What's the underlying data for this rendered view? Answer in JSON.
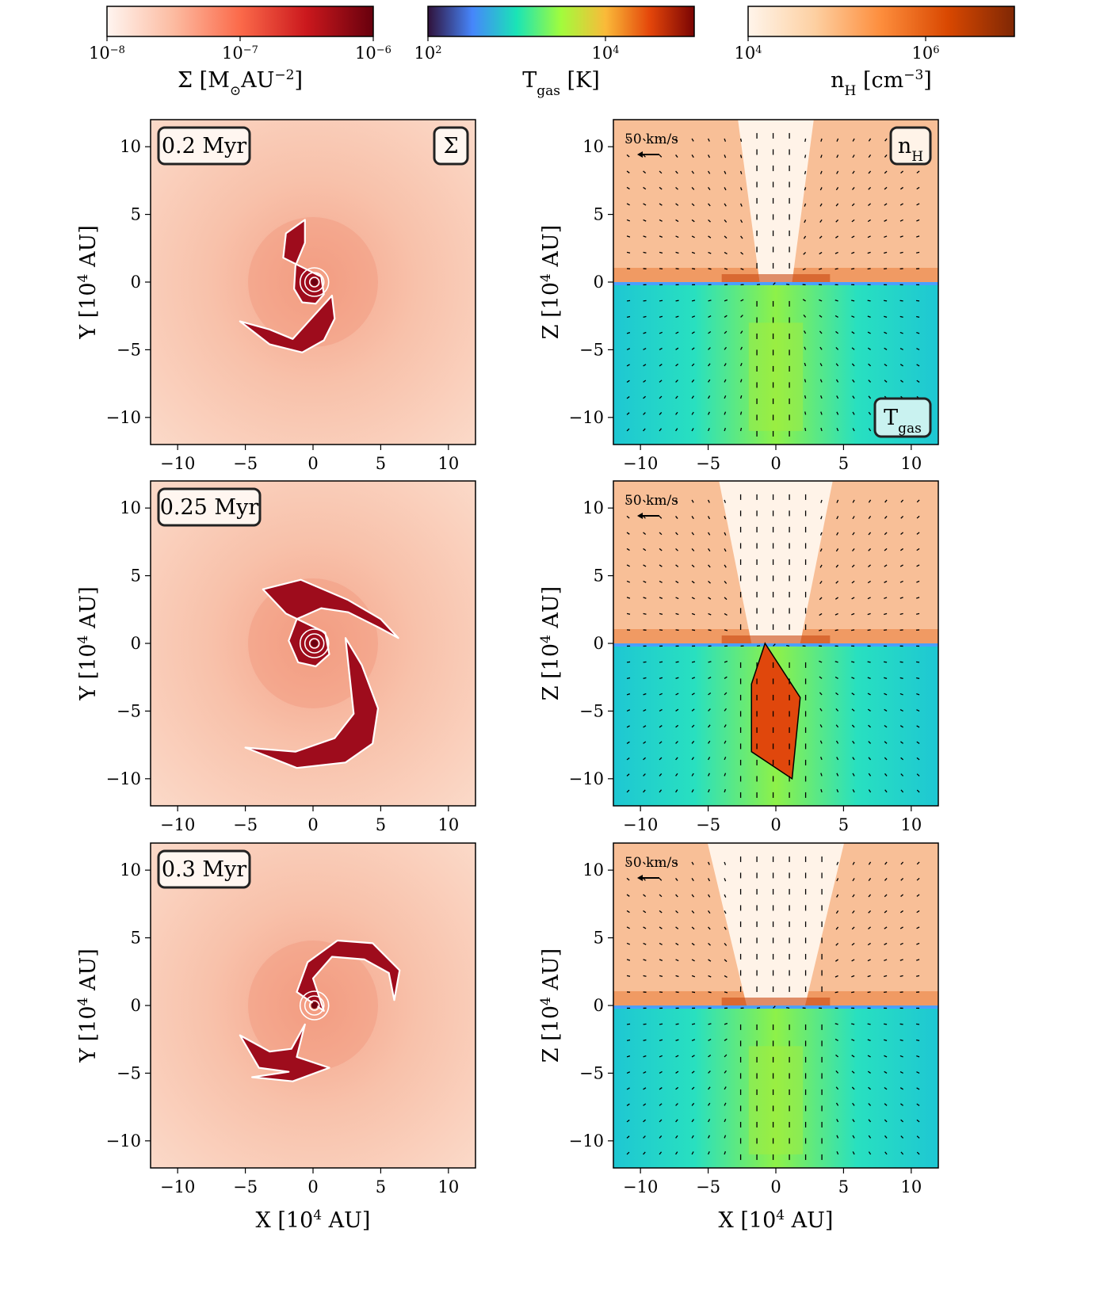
{
  "colorbars": [
    {
      "id": "sigma",
      "scale": "log",
      "ticks": [
        {
          "mant": "10",
          "exp": "−8"
        },
        {
          "mant": "10",
          "exp": "−7"
        },
        {
          "mant": "10",
          "exp": "−6"
        }
      ],
      "label": {
        "sym": "Σ",
        "unit_open": "[M",
        "sub": "⊙",
        "unit_mid": "AU",
        "sup": "−2",
        "unit_close": "]"
      },
      "colors": [
        "#fff5f0",
        "#fcbba1",
        "#fb6a4a",
        "#cb181d",
        "#67000d"
      ]
    },
    {
      "id": "tgas",
      "scale": "log",
      "ticks": [
        {
          "mant": "10",
          "exp": "2"
        },
        {
          "mant": "10",
          "exp": "4"
        }
      ],
      "label": {
        "sym": "T",
        "sub": "gas",
        "unit": "[K]"
      },
      "colors": [
        "#30123b",
        "#4686fb",
        "#1ae4b6",
        "#a2fc3c",
        "#faba39",
        "#e4460a",
        "#7a0403"
      ]
    },
    {
      "id": "nh",
      "scale": "log",
      "ticks": [
        {
          "mant": "10",
          "exp": "4"
        },
        {
          "mant": "10",
          "exp": "6"
        }
      ],
      "label": {
        "sym": "n",
        "sub": "H",
        "unit_open": "[cm",
        "sup": "−3",
        "unit_close": "]"
      },
      "colors": [
        "#fff5eb",
        "#fdd0a2",
        "#fd8d3c",
        "#d94801",
        "#7f2704"
      ]
    }
  ],
  "chart_data": [
    {
      "type": "heatmap",
      "quantity": "Σ",
      "time_label": "0.2 Myr",
      "badge": "Σ",
      "xlim": [
        -12,
        12
      ],
      "ylim": [
        -12,
        12
      ],
      "xticks": [
        "−10",
        "−5",
        "0",
        "5",
        "10"
      ],
      "yticks": [
        "10",
        "5",
        "0",
        "−5",
        "−10"
      ],
      "xlabel": "",
      "ylabel": {
        "base": "Y  [10",
        "sup": "4",
        "tail": " AU]"
      },
      "arms": [
        [
          [
            0.6,
            0.4
          ],
          [
            0.8,
            -0.9
          ],
          [
            0.2,
            -1.6
          ],
          [
            -0.8,
            -1.5
          ],
          [
            -1.4,
            -0.5
          ],
          [
            -1.3,
            1.2
          ],
          [
            -0.6,
            2.9
          ],
          [
            -0.6,
            4.6
          ],
          [
            -2.0,
            3.6
          ],
          [
            -2.2,
            1.8
          ]
        ],
        [
          [
            1.4,
            -1.0
          ],
          [
            1.6,
            -2.7
          ],
          [
            0.8,
            -4.3
          ],
          [
            -0.8,
            -5.2
          ],
          [
            -3.2,
            -4.6
          ],
          [
            -5.4,
            -2.9
          ],
          [
            -3.2,
            -3.5
          ],
          [
            -1.5,
            -4.2
          ]
        ]
      ]
    },
    {
      "type": "heatmap",
      "quantity": "n_H / T_gas",
      "top_badge": "n_H",
      "bottom_badge": "T_gas",
      "velocity_scale": "50 km/s",
      "xlim": [
        -12,
        12
      ],
      "ylim": [
        -12,
        12
      ],
      "xticks": [
        "−10",
        "−5",
        "0",
        "5",
        "10"
      ],
      "yticks": [
        "10",
        "5",
        "0",
        "−5",
        "−10"
      ],
      "xlabel": "",
      "ylabel": {
        "base": "Z  [10",
        "sup": "4",
        "tail": " AU]"
      },
      "outflow_halfwidth": 2.0,
      "hot_lobe_halfwidth": 0.0
    },
    {
      "type": "heatmap",
      "quantity": "Σ",
      "time_label": "0.25 Myr",
      "xlim": [
        -12,
        12
      ],
      "ylim": [
        -12,
        12
      ],
      "xticks": [
        "−10",
        "−5",
        "0",
        "5",
        "10"
      ],
      "yticks": [
        "10",
        "5",
        "0",
        "−5",
        "−10"
      ],
      "xlabel": "",
      "ylabel": {
        "base": "Y  [10",
        "sup": "4",
        "tail": " AU]"
      },
      "arms": [
        [
          [
            0.9,
            0.8
          ],
          [
            1.2,
            -0.8
          ],
          [
            0.2,
            -1.7
          ],
          [
            -1.1,
            -1.4
          ],
          [
            -1.8,
            0.2
          ],
          [
            -1.2,
            1.8
          ],
          [
            0.6,
            2.6
          ],
          [
            2.6,
            2.3
          ],
          [
            4.8,
            1.2
          ],
          [
            6.3,
            0.4
          ],
          [
            5.0,
            1.8
          ],
          [
            2.6,
            3.2
          ],
          [
            -0.9,
            4.7
          ],
          [
            -3.7,
            4.0
          ],
          [
            -2.0,
            2.2
          ]
        ],
        [
          [
            2.4,
            0.4
          ],
          [
            3.6,
            -1.6
          ],
          [
            4.8,
            -4.8
          ],
          [
            4.4,
            -7.4
          ],
          [
            2.4,
            -8.8
          ],
          [
            -1.2,
            -9.2
          ],
          [
            -5.0,
            -7.7
          ],
          [
            -1.3,
            -8.0
          ],
          [
            1.6,
            -7.0
          ],
          [
            3.0,
            -5.2
          ]
        ]
      ]
    },
    {
      "type": "heatmap",
      "quantity": "n_H / T_gas",
      "velocity_scale": "50 km/s",
      "xlim": [
        -12,
        12
      ],
      "ylim": [
        -12,
        12
      ],
      "xticks": [
        "−10",
        "−5",
        "0",
        "5",
        "10"
      ],
      "yticks": [
        "10",
        "5",
        "0",
        "−5",
        "−10"
      ],
      "xlabel": "",
      "ylabel": {
        "base": "Z  [10",
        "sup": "4",
        "tail": " AU]"
      },
      "outflow_halfwidth": 3.0,
      "hot_lobe_halfwidth": 1.8
    },
    {
      "type": "heatmap",
      "quantity": "Σ",
      "time_label": "0.3 Myr",
      "xlim": [
        -12,
        12
      ],
      "ylim": [
        -12,
        12
      ],
      "xticks": [
        "−10",
        "−5",
        "0",
        "5",
        "10"
      ],
      "yticks": [
        "10",
        "5",
        "0",
        "−5",
        "−10"
      ],
      "xlabel": {
        "base": "X  [10",
        "sup": "4",
        "tail": " AU]"
      },
      "ylabel": {
        "base": "Y  [10",
        "sup": "4",
        "tail": " AU]"
      },
      "arms": [
        [
          [
            -1.2,
            1.0
          ],
          [
            -0.4,
            3.2
          ],
          [
            1.8,
            4.8
          ],
          [
            4.4,
            4.6
          ],
          [
            6.4,
            2.6
          ],
          [
            6.0,
            0.4
          ],
          [
            5.6,
            2.4
          ],
          [
            3.8,
            3.4
          ],
          [
            1.4,
            3.6
          ],
          [
            0.0,
            2.0
          ],
          [
            0.8,
            -0.4
          ]
        ],
        [
          [
            -0.6,
            -1.4
          ],
          [
            -1.6,
            -3.2
          ],
          [
            -3.2,
            -3.4
          ],
          [
            -5.4,
            -2.2
          ],
          [
            -4.0,
            -4.6
          ],
          [
            -1.8,
            -4.9
          ],
          [
            -4.5,
            -5.3
          ],
          [
            -1.5,
            -5.6
          ],
          [
            1.2,
            -4.6
          ],
          [
            -1.2,
            -3.8
          ]
        ]
      ]
    },
    {
      "type": "heatmap",
      "quantity": "n_H / T_gas",
      "velocity_scale": "50 km/s",
      "xlim": [
        -12,
        12
      ],
      "ylim": [
        -12,
        12
      ],
      "xticks": [
        "−10",
        "−5",
        "0",
        "5",
        "10"
      ],
      "yticks": [
        "10",
        "5",
        "0",
        "−5",
        "−10"
      ],
      "xlabel": {
        "base": "X  [10",
        "sup": "4",
        "tail": " AU]"
      },
      "ylabel": {
        "base": "Z  [10",
        "sup": "4",
        "tail": " AU]"
      },
      "outflow_halfwidth": 3.6,
      "hot_lobe_halfwidth": 0.0
    }
  ]
}
